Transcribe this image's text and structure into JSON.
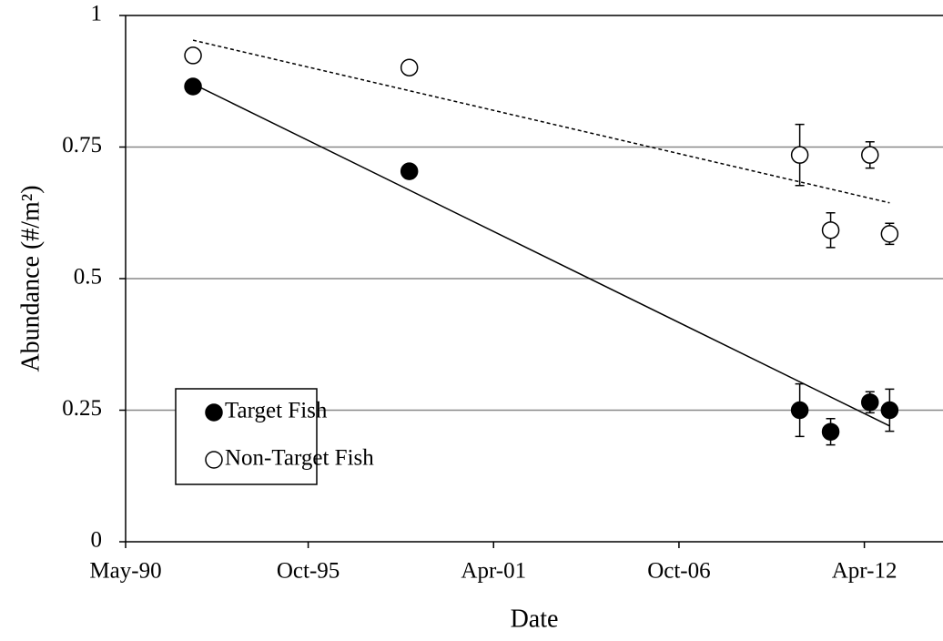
{
  "chart_data": {
    "type": "scatter",
    "xlabel": "Date",
    "ylabel": "Abundance (#/m²)",
    "x": [
      "1992-05",
      "1998-10",
      "2010-05",
      "2011-04",
      "2012-06",
      "2013-01"
    ],
    "series": [
      {
        "name": "Target Fish",
        "color": "#000000",
        "filled": true,
        "values": [
          0.865,
          0.704,
          0.25,
          0.209,
          0.265,
          0.25
        ],
        "errors": [
          null,
          null,
          0.05,
          0.025,
          0.02,
          0.04
        ],
        "trendline": [
          0.87,
          0.22
        ],
        "trendline_style": "solid"
      },
      {
        "name": "Non-Target Fish",
        "color": "#000000",
        "filled": false,
        "values": [
          0.924,
          0.901,
          0.735,
          0.592,
          0.735,
          0.585
        ],
        "errors": [
          null,
          null,
          0.058,
          0.033,
          0.025,
          0.02
        ],
        "trendline": [
          0.953,
          0.644
        ],
        "trendline_style": "dashed"
      }
    ],
    "xlim": [
      "1990-05",
      "2014-08"
    ],
    "xticks": [
      {
        "value": "1990-05",
        "label": "May-90"
      },
      {
        "value": "1995-10",
        "label": "Oct-95"
      },
      {
        "value": "2001-04",
        "label": "Apr-01"
      },
      {
        "value": "2006-10",
        "label": "Oct-06"
      },
      {
        "value": "2012-04",
        "label": "Apr-12"
      }
    ],
    "ylim": [
      0,
      1
    ],
    "yticks": [
      0,
      0.25,
      0.5,
      0.75,
      1
    ],
    "grid": true,
    "legend": "lower left"
  }
}
